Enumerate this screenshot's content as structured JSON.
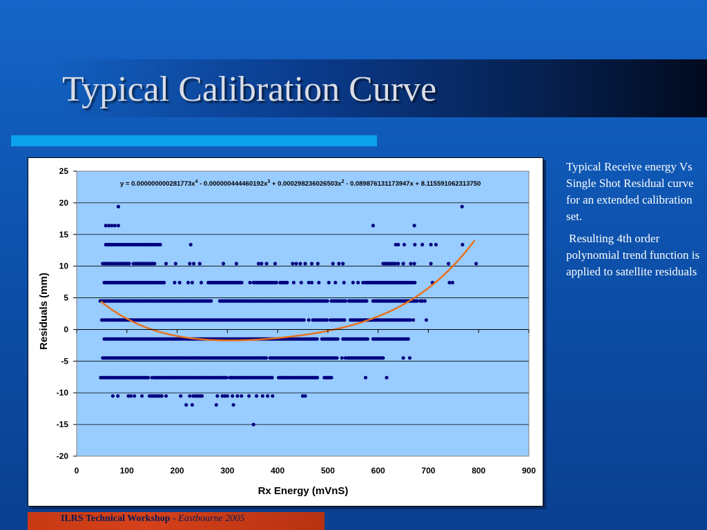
{
  "slide": {
    "title": "Typical Calibration Curve",
    "description_1": "Typical Receive energy Vs Single Shot Residual curve for an extended calibration set.",
    "description_2": "Resulting 4th order polynomial trend function is applied to satellite residuals",
    "footer_bold": "ILRS Technical Workshop - ",
    "footer_italic": "Eastbourne 2005"
  },
  "colors": {
    "plot_background": "#99ccff",
    "points": "#000080",
    "trendline": "#e8701a",
    "title_underline": "#0ba2ec",
    "footer_bar": "#c83a14"
  },
  "chart_data": {
    "type": "scatter",
    "xlabel": "Rx Energy (mVnS)",
    "ylabel": "Residuals (mm)",
    "xlim": [
      0,
      900
    ],
    "ylim": [
      -20,
      25
    ],
    "x_ticks": [
      "0",
      "100",
      "200",
      "300",
      "400",
      "500",
      "600",
      "700",
      "800",
      "900"
    ],
    "y_ticks": [
      "25",
      "20",
      "15",
      "10",
      "5",
      "0",
      "-5",
      "-10",
      "-15",
      "-20"
    ],
    "grid": "horizontal",
    "equation": {
      "prefix": "y = 0.000000000281773x",
      "e1": "4",
      "t2": " - 0.000000444460192x",
      "e2": "3",
      "t3": " + 0.000298236026503x",
      "e3": "2",
      "t4": " - 0.089876131173947x  + 8.115591062313750"
    },
    "trendline": {
      "coefficients": [
        8.11559106231375,
        -0.089876131173947,
        0.000298236026503,
        -4.44460192e-07,
        2.81773e-10
      ],
      "x_range": [
        48,
        795
      ]
    },
    "levels": [
      {
        "y": 19.4,
        "ranges": [],
        "points": [
          83,
          767
        ]
      },
      {
        "y": 16.4,
        "ranges": [],
        "points": [
          58,
          64,
          70,
          76,
          83,
          590,
          672
        ]
      },
      {
        "y": 13.4,
        "ranges": [
          [
            58,
            168
          ]
        ],
        "points": [
          227,
          635,
          640,
          652,
          673,
          688,
          705,
          715,
          768
        ]
      },
      {
        "y": 10.4,
        "ranges": [
          [
            52,
            106
          ],
          [
            113,
            155
          ],
          [
            610,
            635
          ]
        ],
        "points": [
          178,
          197,
          225,
          233,
          245,
          292,
          318,
          362,
          368,
          378,
          395,
          430,
          437,
          445,
          455,
          468,
          480,
          510,
          522,
          530,
          640,
          650,
          665,
          672,
          705,
          740,
          795
        ]
      },
      {
        "y": 7.4,
        "ranges": [
          [
            55,
            175
          ],
          [
            262,
            330
          ],
          [
            352,
            398
          ],
          [
            405,
            422
          ],
          [
            575,
            673
          ]
        ],
        "points": [
          195,
          205,
          222,
          230,
          248,
          345,
          432,
          447,
          462,
          468,
          482,
          502,
          515,
          532,
          550,
          560,
          570,
          708,
          742,
          748
        ]
      },
      {
        "y": 4.5,
        "ranges": [
          [
            47,
            270
          ],
          [
            285,
            495
          ],
          [
            507,
            535
          ],
          [
            542,
            580
          ],
          [
            590,
            680
          ]
        ],
        "points": [
          499,
          684,
          688,
          693
        ]
      },
      {
        "y": 1.5,
        "ranges": [
          [
            50,
            455
          ],
          [
            470,
            500
          ],
          [
            505,
            535
          ],
          [
            545,
            664
          ]
        ],
        "points": [
          462,
          670,
          696
        ]
      },
      {
        "y": -1.5,
        "ranges": [
          [
            55,
            480
          ],
          [
            488,
            520
          ],
          [
            530,
            580
          ],
          [
            590,
            662
          ]
        ],
        "points": []
      },
      {
        "y": -4.5,
        "ranges": [
          [
            52,
            378
          ],
          [
            385,
            520
          ],
          [
            540,
            610
          ]
        ],
        "points": [
          528,
          535,
          650,
          663
        ]
      },
      {
        "y": -7.6,
        "ranges": [
          [
            48,
            145
          ],
          [
            155,
            300
          ],
          [
            305,
            390
          ],
          [
            402,
            480
          ],
          [
            493,
            507
          ]
        ],
        "points": [
          150,
          410,
          575,
          617
        ]
      },
      {
        "y": -10.5,
        "ranges": [
          [
            145,
            170
          ],
          [
            232,
            250
          ]
        ],
        "points": [
          72,
          82,
          103,
          108,
          115,
          130,
          178,
          207,
          225,
          280,
          290,
          295,
          300,
          310,
          320,
          328,
          343,
          358,
          370,
          380,
          390,
          450,
          455
        ]
      },
      {
        "y": -11.9,
        "ranges": [],
        "points": [
          218,
          230,
          278,
          312
        ]
      },
      {
        "y": -15.0,
        "ranges": [],
        "points": [
          352
        ]
      }
    ]
  }
}
